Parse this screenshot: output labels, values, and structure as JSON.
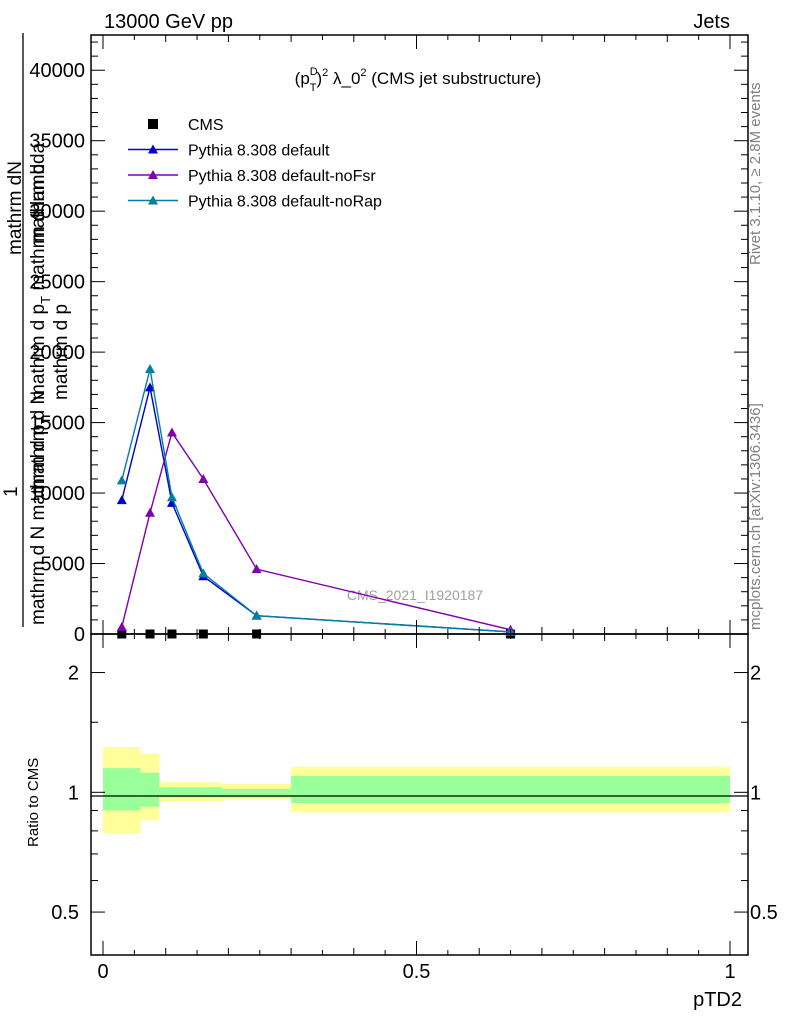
{
  "header": {
    "left": "13000 GeV pp",
    "right": "Jets"
  },
  "side_labels": {
    "rivet": "Rivet 3.1.10, ≥ 2.8M events",
    "mcplots": "mcplots.cern.ch [arXiv:1306.3436]"
  },
  "chart_data": [
    {
      "type": "line",
      "title_parts": {
        "open": "(p",
        "sup1": "D",
        "sub1": "T",
        "close": ")",
        "sup2": "2",
        "mid": " λ_0",
        "sup3": "2",
        "tail": " (CMS jet substructure)"
      },
      "ylabel": {
        "one": "1",
        "num": "mathrm dN",
        "den": "mathrm d N mathrm d p",
        "den_sub": "T",
        "num2": "mathrm d N",
        "frac_num": "mathrm d",
        "frac_den": "mathrm d p",
        "frac_den2": "mathrm d p",
        "frac_den2_sub": "T",
        "frac_den2_tail": " mathrm d lambda"
      },
      "watermark": "CMS_2021_I1920187",
      "xlim": [
        0,
        1
      ],
      "ylim": [
        0,
        42500
      ],
      "yticks": [
        0,
        5000,
        10000,
        15000,
        20000,
        25000,
        30000,
        35000,
        40000
      ],
      "ytick_labels": [
        "0",
        "5000",
        "10000",
        "15000",
        "20000",
        "25000",
        "30000",
        "35000",
        "40000"
      ],
      "legend_position": "top-left",
      "series": [
        {
          "name": "CMS",
          "marker": "square",
          "color": "#000000",
          "x": [
            0.03,
            0.075,
            0.11,
            0.16,
            0.245,
            0.65
          ],
          "y": [
            0,
            0,
            0,
            0,
            0,
            0
          ]
        },
        {
          "name": "Pythia 8.308 default",
          "marker": "triangle",
          "color": "#0000cc",
          "x": [
            0.03,
            0.075,
            0.11,
            0.16,
            0.245,
            0.65
          ],
          "y": [
            9500,
            17500,
            9300,
            4100,
            1300,
            150
          ]
        },
        {
          "name": "Pythia 8.308 default-noFsr",
          "marker": "triangle",
          "color": "#8000b0",
          "x": [
            0.03,
            0.075,
            0.11,
            0.16,
            0.245,
            0.65
          ],
          "y": [
            500,
            8600,
            14300,
            11000,
            4600,
            300
          ]
        },
        {
          "name": "Pythia 8.308 default-noRap",
          "marker": "triangle",
          "color": "#0080a0",
          "x": [
            0.03,
            0.075,
            0.11,
            0.16,
            0.245,
            0.65
          ],
          "y": [
            10900,
            18800,
            9700,
            4300,
            1300,
            150
          ]
        }
      ]
    },
    {
      "type": "area",
      "ylabel": "Ratio to CMS",
      "xlabel": "pTD2",
      "xlim": [
        0,
        1
      ],
      "ylim": [
        0.39,
        2.5
      ],
      "yscale": "log",
      "yticks": [
        0.5,
        1,
        2
      ],
      "ytick_labels": [
        "0.5",
        "1",
        "2"
      ],
      "xticks": [
        0,
        0.5,
        1
      ],
      "xtick_labels": [
        "0",
        "0.5",
        "1"
      ],
      "bins": [
        {
          "lo": 0.0,
          "hi": 0.06,
          "green": [
            0.9,
            1.15
          ],
          "yellow": [
            0.79,
            1.3
          ]
        },
        {
          "lo": 0.06,
          "hi": 0.09,
          "green": [
            0.92,
            1.12
          ],
          "yellow": [
            0.85,
            1.25
          ]
        },
        {
          "lo": 0.09,
          "hi": 0.19,
          "green": [
            0.97,
            1.03
          ],
          "yellow": [
            0.95,
            1.06
          ]
        },
        {
          "lo": 0.19,
          "hi": 0.3,
          "green": [
            0.97,
            1.02
          ],
          "yellow": [
            0.96,
            1.05
          ]
        },
        {
          "lo": 0.3,
          "hi": 1.0,
          "green": [
            0.94,
            1.1
          ],
          "yellow": [
            0.89,
            1.16
          ]
        }
      ],
      "colors": {
        "green": "#99ff99",
        "yellow": "#ffff99"
      }
    }
  ]
}
